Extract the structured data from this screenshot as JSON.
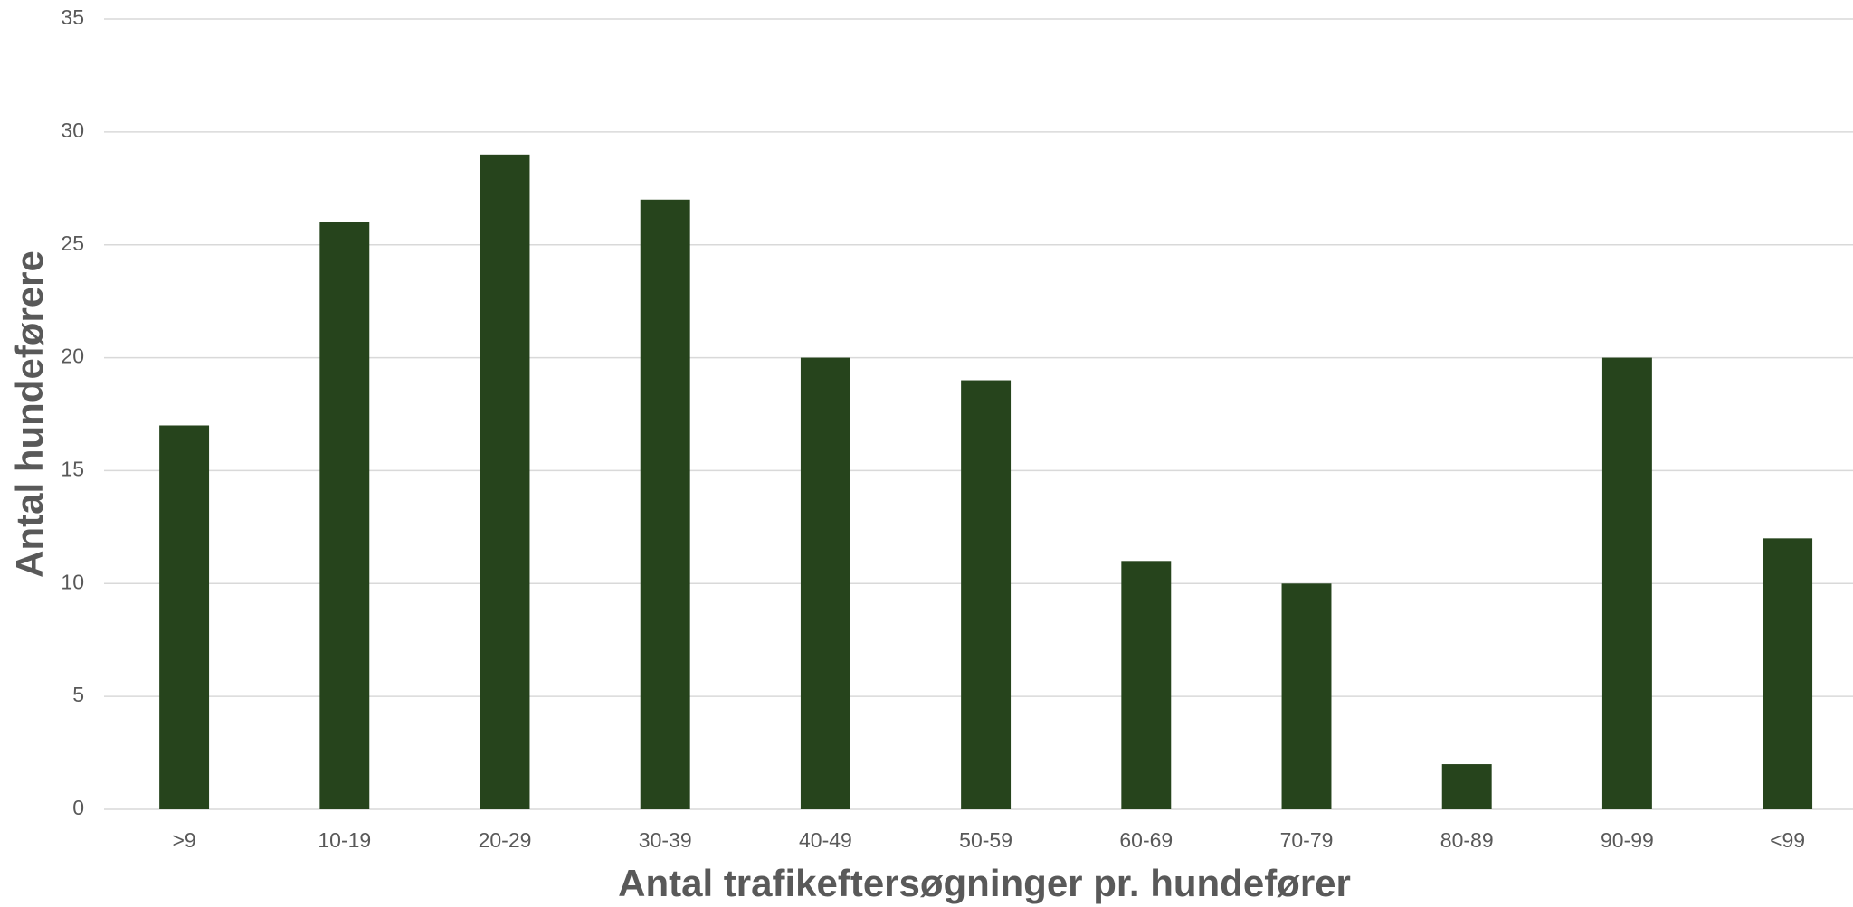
{
  "chart_data": {
    "type": "bar",
    "x_label": "Antal trafikeftersøgninger pr. hundefører",
    "y_label": "Antal hundeførere",
    "categories": [
      ">9",
      "10-19",
      "20-29",
      "30-39",
      "40-49",
      "50-59",
      "60-69",
      "70-79",
      "80-89",
      "90-99",
      "<99"
    ],
    "values": [
      17,
      26,
      29,
      27,
      20,
      19,
      11,
      10,
      2,
      20,
      12
    ],
    "color": "#26441c",
    "ylim": [
      0,
      35
    ],
    "yticks": [
      0,
      5,
      10,
      15,
      20,
      25,
      30,
      35
    ],
    "grid": true
  }
}
